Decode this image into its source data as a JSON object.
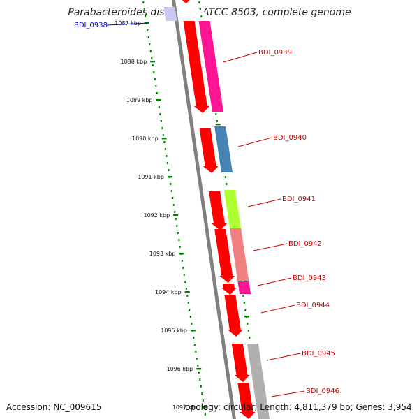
{
  "header": {
    "title": "Parabacteroides distasonis ATCC 8503, complete genome"
  },
  "footer": {
    "accession": "Accession: NC_009615",
    "stats": "Topology: circular; Length: 4,811,379 bp; Genes: 3,954"
  },
  "colors": {
    "backbone": "#808080",
    "cds": "#ff0000",
    "tick": "#008000",
    "label_red": "#cc0000",
    "label_blue": "#0000cc"
  },
  "axis": {
    "ticks": [
      {
        "label": "1087 kbp"
      },
      {
        "label": "1088 kbp"
      },
      {
        "label": "1089 kbp"
      },
      {
        "label": "1090 kbp"
      },
      {
        "label": "1091 kbp"
      },
      {
        "label": "1092 kbp"
      },
      {
        "label": "1093 kbp"
      },
      {
        "label": "1094 kbp"
      },
      {
        "label": "1095 kbp"
      },
      {
        "label": "1096 kbp"
      },
      {
        "label": "1097 kbp"
      }
    ]
  },
  "genes": [
    {
      "name": "BDI_0938",
      "color": "#c8c8f0"
    },
    {
      "name": "BDI_0939",
      "color": "#ff1493"
    },
    {
      "name": "BDI_0940",
      "color": "#4682b4"
    },
    {
      "name": "BDI_0941",
      "color": "#adff2f"
    },
    {
      "name": "BDI_0942",
      "color": "#f08080"
    },
    {
      "name": "BDI_0943",
      "color": "#ff1493"
    },
    {
      "name": "BDI_0944",
      "color": ""
    },
    {
      "name": "BDI_0945",
      "color": "#b0b0b0"
    },
    {
      "name": "BDI_0946",
      "color": "#b0b0b0"
    }
  ]
}
